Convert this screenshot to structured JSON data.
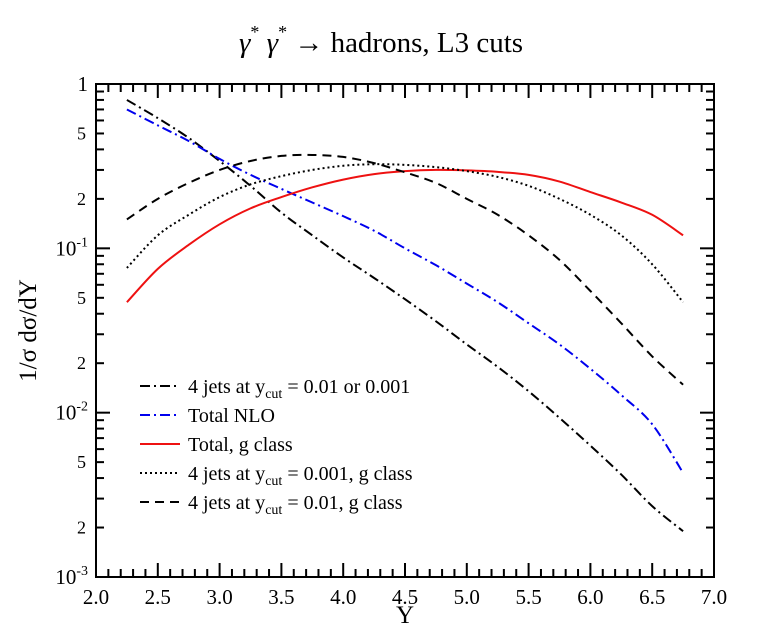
{
  "chart_data": {
    "type": "line",
    "title_parts": {
      "gamma": "γ",
      "star": "*",
      "arrow_text": "→ hadrons, L3 cuts"
    },
    "xlabel": "Y",
    "ylabel": "1/σ  dσ/dY",
    "xlim": [
      2.0,
      7.0
    ],
    "ylim": [
      0.001,
      1
    ],
    "yscale": "log",
    "grid": false,
    "legend_position": "lower-left",
    "x_ticks": [
      "2.0",
      "2.5",
      "3.0",
      "3.5",
      "4.0",
      "4.5",
      "5.0",
      "5.5",
      "6.0",
      "6.5",
      "7.0"
    ],
    "y_decade_labels": {
      "d0": {
        "base": "1",
        "exp": ""
      },
      "d1": {
        "base": "10",
        "exp": "-1"
      },
      "d2": {
        "base": "10",
        "exp": "-2"
      },
      "d3": {
        "base": "10",
        "exp": "-3"
      }
    },
    "y_minor_labels": [
      "5",
      "2"
    ],
    "series": [
      {
        "key": "four_jets",
        "name_parts": [
          "4 jets at y",
          "cut",
          " = 0.01 or 0.001"
        ],
        "color": "#000000",
        "dash": "dashdot",
        "x": [
          2.25,
          2.5,
          2.75,
          3.0,
          3.25,
          3.5,
          3.75,
          4.0,
          4.25,
          4.5,
          4.75,
          5.0,
          5.25,
          5.5,
          5.75,
          6.0,
          6.25,
          6.5,
          6.75
        ],
        "y": [
          0.8,
          0.62,
          0.47,
          0.34,
          0.24,
          0.165,
          0.12,
          0.088,
          0.066,
          0.049,
          0.036,
          0.026,
          0.019,
          0.0135,
          0.0093,
          0.0063,
          0.0042,
          0.0027,
          0.0019
        ]
      },
      {
        "key": "total_nlo",
        "name_parts": [
          "Total NLO"
        ],
        "color": "#0000ee",
        "dash": "dashdot",
        "x": [
          2.25,
          2.5,
          2.75,
          3.0,
          3.25,
          3.5,
          3.75,
          4.0,
          4.25,
          4.5,
          4.75,
          5.0,
          5.25,
          5.5,
          5.75,
          6.0,
          6.25,
          6.5,
          6.75
        ],
        "y": [
          0.7,
          0.56,
          0.45,
          0.35,
          0.28,
          0.23,
          0.19,
          0.157,
          0.128,
          0.1,
          0.079,
          0.061,
          0.047,
          0.035,
          0.026,
          0.0185,
          0.0128,
          0.0085,
          0.0043
        ]
      },
      {
        "key": "total_g",
        "name_parts": [
          "Total, g class"
        ],
        "color": "#ee1111",
        "dash": "solid",
        "x": [
          2.25,
          2.5,
          2.75,
          3.0,
          3.25,
          3.5,
          3.75,
          4.0,
          4.25,
          4.5,
          4.75,
          5.0,
          5.25,
          5.5,
          5.75,
          6.0,
          6.25,
          6.5,
          6.75
        ],
        "y": [
          0.047,
          0.075,
          0.105,
          0.14,
          0.175,
          0.205,
          0.235,
          0.262,
          0.283,
          0.295,
          0.3,
          0.298,
          0.292,
          0.28,
          0.255,
          0.22,
          0.19,
          0.16,
          0.12
        ]
      },
      {
        "key": "four_jets_0001",
        "name_parts": [
          "4 jets at y",
          "cut",
          " = 0.001, g class"
        ],
        "color": "#000000",
        "dash": "dotted",
        "x": [
          2.25,
          2.5,
          2.75,
          3.0,
          3.25,
          3.5,
          3.75,
          4.0,
          4.25,
          4.5,
          4.75,
          5.0,
          5.25,
          5.5,
          5.75,
          6.0,
          6.25,
          6.5,
          6.75
        ],
        "y": [
          0.076,
          0.12,
          0.16,
          0.205,
          0.245,
          0.275,
          0.3,
          0.318,
          0.325,
          0.322,
          0.312,
          0.295,
          0.272,
          0.24,
          0.2,
          0.16,
          0.12,
          0.08,
          0.047
        ]
      },
      {
        "key": "four_jets_001",
        "name_parts": [
          "4 jets at y",
          "cut",
          " = 0.01, g class"
        ],
        "color": "#000000",
        "dash": "dashed",
        "x": [
          2.25,
          2.5,
          2.75,
          3.0,
          3.25,
          3.5,
          3.75,
          4.0,
          4.25,
          4.5,
          4.75,
          5.0,
          5.25,
          5.5,
          5.75,
          6.0,
          6.25,
          6.5,
          6.75
        ],
        "y": [
          0.15,
          0.2,
          0.25,
          0.3,
          0.34,
          0.365,
          0.37,
          0.36,
          0.33,
          0.29,
          0.25,
          0.2,
          0.16,
          0.12,
          0.085,
          0.055,
          0.035,
          0.022,
          0.0148
        ]
      }
    ]
  }
}
